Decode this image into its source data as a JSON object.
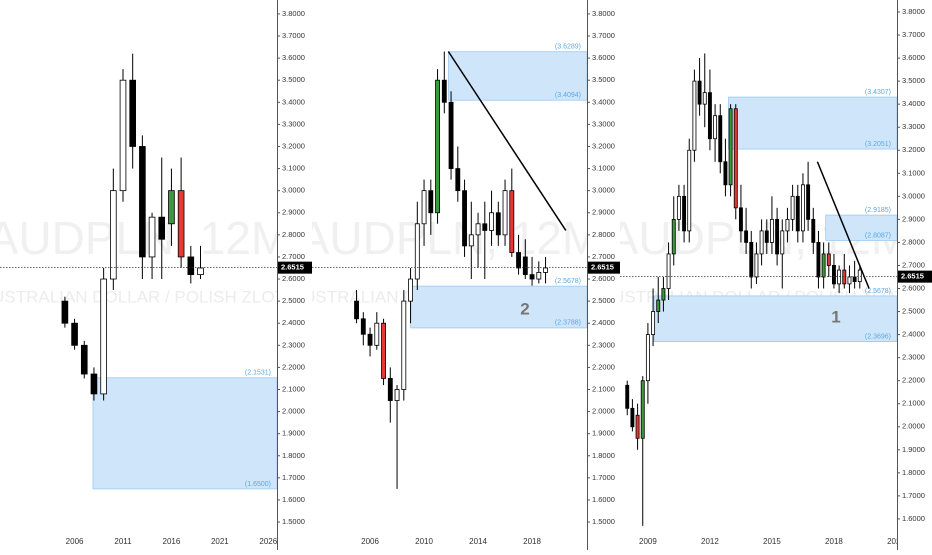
{
  "chart_data": [
    {
      "type": "candlestick",
      "watermark": "AUDPLN, 12M",
      "subtitle": "AUSTRALIAN DOLLAR / POLISH ZLOTY",
      "x": [
        2005,
        2006,
        2007,
        2008,
        2009,
        2010,
        2011,
        2012,
        2013,
        2014,
        2015,
        2016,
        2017,
        2018,
        2019
      ],
      "open": [
        2.5,
        2.4,
        2.3,
        2.17,
        2.08,
        2.6,
        3.0,
        3.5,
        3.2,
        2.7,
        2.88,
        2.85,
        3.0,
        2.7,
        2.62
      ],
      "high": [
        2.52,
        2.42,
        2.32,
        2.2,
        2.65,
        3.1,
        3.55,
        3.62,
        3.25,
        2.9,
        3.15,
        3.1,
        3.15,
        2.75,
        2.75
      ],
      "low": [
        2.38,
        2.28,
        2.15,
        2.05,
        2.05,
        2.55,
        2.95,
        3.1,
        2.6,
        2.6,
        2.6,
        2.75,
        2.65,
        2.58,
        2.6
      ],
      "close": [
        2.4,
        2.3,
        2.17,
        2.08,
        2.6,
        3.0,
        3.5,
        3.2,
        2.7,
        2.88,
        2.78,
        3.0,
        2.7,
        2.62,
        2.65
      ],
      "colors": [
        "#000000",
        "#000000",
        "#000000",
        "#000000",
        "#ffffff",
        "#ffffff",
        "#ffffff",
        "#000000",
        "#000000",
        "#ffffff",
        "#000000",
        "#3a9b3a",
        "#e53935",
        "#000000",
        "#ffffff"
      ],
      "xlim": [
        1998.3,
        2026.9
      ],
      "xticks": [
        2006,
        2011,
        2016,
        2021,
        2026
      ],
      "ylim": [
        1.464,
        3.863
      ],
      "yticks": [
        {
          "value": 3.8,
          "label": "3.8000"
        },
        {
          "value": 3.7,
          "label": "3.7000"
        },
        {
          "value": 3.6,
          "label": "3.6000"
        },
        {
          "value": 3.5,
          "label": "3.5000"
        },
        {
          "value": 3.4,
          "label": "3.4000"
        },
        {
          "value": 3.3,
          "label": "3.3000"
        },
        {
          "value": 3.2,
          "label": "3.2000"
        },
        {
          "value": 3.1,
          "label": "3.1000"
        },
        {
          "value": 3.0,
          "label": "3.0000"
        },
        {
          "value": 2.9,
          "label": "2.9000"
        },
        {
          "value": 2.8,
          "label": "2.8000"
        },
        {
          "value": 2.7,
          "label": "2.7000"
        },
        {
          "value": 2.6,
          "label": "2.6000"
        },
        {
          "value": 2.5,
          "label": "2.5000"
        },
        {
          "value": 2.4,
          "label": "2.4000"
        },
        {
          "value": 2.3,
          "label": "2.3000"
        },
        {
          "value": 2.2,
          "label": "2.2000"
        },
        {
          "value": 2.1,
          "label": "2.1000"
        },
        {
          "value": 2.0,
          "label": "2.0000"
        },
        {
          "value": 1.9,
          "label": "1.9000"
        },
        {
          "value": 1.8,
          "label": "1.8000"
        },
        {
          "value": 1.7,
          "label": "1.7000"
        },
        {
          "value": 1.6,
          "label": "1.6000"
        },
        {
          "value": 1.5,
          "label": "1.5000"
        }
      ],
      "last_price": 2.6515,
      "zones": [
        {
          "start": 2007.9,
          "top": {
            "value": 2.1531,
            "label": "(2.1531)"
          },
          "bottom": {
            "value": 1.65,
            "label": "(1.6500)"
          }
        }
      ],
      "trendlines": []
    },
    {
      "type": "candlestick",
      "watermark": "AUDPLN, 12M",
      "subtitle": "AUSTRALIAN DOLLAR / POLISH ZLOTY",
      "x": [
        2005,
        2005.5,
        2006,
        2006.5,
        2007,
        2007.5,
        2008,
        2008.5,
        2009,
        2009.5,
        2010,
        2010.5,
        2011,
        2011.5,
        2012,
        2012.5,
        2013,
        2013.5,
        2014,
        2014.5,
        2015,
        2015.5,
        2016,
        2016.5,
        2017,
        2017.5,
        2018,
        2018.5,
        2019
      ],
      "open": [
        2.5,
        2.42,
        2.35,
        2.3,
        2.4,
        2.15,
        2.05,
        2.1,
        2.5,
        2.6,
        2.85,
        3.0,
        2.9,
        3.5,
        3.4,
        3.1,
        3.0,
        2.75,
        2.8,
        2.85,
        2.82,
        2.9,
        2.8,
        3.0,
        2.72,
        2.7,
        2.62,
        2.6,
        2.63
      ],
      "high": [
        2.55,
        2.45,
        2.38,
        2.45,
        2.42,
        2.2,
        2.12,
        2.55,
        2.65,
        2.95,
        3.05,
        3.05,
        3.55,
        3.63,
        3.45,
        3.2,
        3.05,
        2.95,
        2.9,
        2.95,
        3.0,
        2.95,
        3.05,
        3.1,
        2.8,
        2.78,
        2.7,
        2.68,
        2.7
      ],
      "low": [
        2.4,
        2.3,
        2.25,
        2.28,
        2.12,
        1.95,
        1.65,
        2.05,
        2.4,
        2.55,
        2.75,
        2.8,
        2.85,
        3.35,
        3.05,
        2.95,
        2.7,
        2.6,
        2.65,
        2.6,
        2.75,
        2.75,
        2.75,
        2.7,
        2.62,
        2.6,
        2.57,
        2.58,
        2.58
      ],
      "close": [
        2.42,
        2.35,
        2.3,
        2.4,
        2.15,
        2.05,
        2.1,
        2.5,
        2.6,
        2.85,
        3.0,
        2.9,
        3.5,
        3.4,
        3.1,
        3.0,
        2.75,
        2.8,
        2.85,
        2.82,
        2.9,
        2.8,
        3.0,
        2.72,
        2.65,
        2.62,
        2.6,
        2.63,
        2.65
      ],
      "colors": [
        "#000000",
        "#000000",
        "#000000",
        "#ffffff",
        "#e53935",
        "#000000",
        "#ffffff",
        "#ffffff",
        "#ffffff",
        "#ffffff",
        "#ffffff",
        "#000000",
        "#3a9b3a",
        "#000000",
        "#000000",
        "#000000",
        "#000000",
        "#ffffff",
        "#ffffff",
        "#000000",
        "#ffffff",
        "#000000",
        "#ffffff",
        "#e53935",
        "#000000",
        "#000000",
        "#000000",
        "#ffffff",
        "#ffffff"
      ],
      "xlim": [
        2001.7,
        2022.07
      ],
      "xticks": [
        2006,
        2010,
        2014,
        2018
      ],
      "ylim": [
        1.464,
        3.863
      ],
      "yticks": [
        {
          "value": 3.8,
          "label": "3.8000"
        },
        {
          "value": 3.7,
          "label": "3.7000"
        },
        {
          "value": 3.6,
          "label": "3.6000"
        },
        {
          "value": 3.5,
          "label": "3.5000"
        },
        {
          "value": 3.4,
          "label": "3.4000"
        },
        {
          "value": 3.3,
          "label": "3.3000"
        },
        {
          "value": 3.2,
          "label": "3.2000"
        },
        {
          "value": 3.1,
          "label": "3.1000"
        },
        {
          "value": 3.0,
          "label": "3.0000"
        },
        {
          "value": 2.9,
          "label": "2.9000"
        },
        {
          "value": 2.8,
          "label": "2.8000"
        },
        {
          "value": 2.7,
          "label": "2.7000"
        },
        {
          "value": 2.6,
          "label": "2.6000"
        },
        {
          "value": 2.5,
          "label": "2.5000"
        },
        {
          "value": 2.4,
          "label": "2.4000"
        },
        {
          "value": 2.3,
          "label": "2.3000"
        },
        {
          "value": 2.2,
          "label": "2.2000"
        },
        {
          "value": 2.1,
          "label": "2.1000"
        },
        {
          "value": 2.0,
          "label": "2.0000"
        },
        {
          "value": 1.9,
          "label": "1.9000"
        },
        {
          "value": 1.8,
          "label": "1.8000"
        },
        {
          "value": 1.7,
          "label": "1.7000"
        },
        {
          "value": 1.6,
          "label": "1.6000"
        },
        {
          "value": 1.5,
          "label": "1.5000"
        }
      ],
      "last_price": 2.6515,
      "zones": [
        {
          "start": 2011.8,
          "top": {
            "value": 3.6289,
            "label": "(3.6289)"
          },
          "bottom": {
            "value": 3.4094,
            "label": "(3.4094)"
          }
        },
        {
          "start": 2009.0,
          "top": {
            "value": 2.5678,
            "label": "(2.5678)"
          },
          "bottom": {
            "value": 2.3788,
            "label": "(2.3788)"
          }
        }
      ],
      "trendlines": [
        {
          "x": [
            2011.8,
            2020.5
          ],
          "y": [
            3.63,
            2.82
          ]
        }
      ],
      "annotation": "2"
    },
    {
      "type": "candlestick",
      "watermark": "AUDPLN, 12M",
      "subtitle": "AUSTRALIAN DOLLAR / POLISH ZLOTY",
      "x": [
        2008,
        2008.25,
        2008.5,
        2008.75,
        2009,
        2009.25,
        2009.5,
        2009.75,
        2010,
        2010.25,
        2010.5,
        2010.75,
        2011,
        2011.25,
        2011.5,
        2011.75,
        2012,
        2012.25,
        2012.5,
        2012.75,
        2013,
        2013.25,
        2013.5,
        2013.75,
        2014,
        2014.25,
        2014.5,
        2014.75,
        2015,
        2015.25,
        2015.5,
        2015.75,
        2016,
        2016.25,
        2016.5,
        2016.75,
        2017,
        2017.25,
        2017.5,
        2017.75,
        2018,
        2018.25,
        2018.5,
        2018.75,
        2019,
        2019.25
      ],
      "open": [
        2.18,
        2.08,
        2.05,
        1.95,
        2.2,
        2.4,
        2.5,
        2.55,
        2.6,
        2.75,
        2.9,
        3.0,
        2.85,
        3.2,
        3.5,
        3.4,
        3.45,
        3.25,
        3.35,
        3.15,
        3.05,
        3.38,
        2.95,
        2.85,
        2.8,
        2.65,
        2.75,
        2.85,
        2.8,
        2.9,
        2.75,
        2.85,
        2.9,
        3.0,
        2.85,
        3.05,
        2.9,
        2.8,
        2.65,
        2.75,
        2.7,
        2.62,
        2.68,
        2.62,
        2.65,
        2.63
      ],
      "high": [
        2.2,
        2.12,
        2.1,
        2.22,
        2.45,
        2.6,
        2.65,
        2.65,
        2.8,
        3.0,
        3.05,
        3.05,
        3.25,
        3.55,
        3.6,
        3.62,
        3.55,
        3.4,
        3.4,
        3.25,
        3.4,
        3.4,
        3.05,
        2.95,
        2.85,
        2.8,
        2.9,
        2.9,
        3.0,
        2.95,
        2.9,
        2.95,
        3.05,
        3.05,
        3.1,
        3.15,
        2.95,
        2.85,
        2.8,
        2.8,
        2.75,
        2.7,
        2.75,
        2.7,
        2.72,
        2.7
      ],
      "low": [
        2.05,
        1.98,
        1.9,
        1.57,
        2.1,
        2.35,
        2.45,
        2.5,
        2.55,
        2.7,
        2.85,
        2.8,
        2.8,
        3.15,
        3.35,
        3.3,
        3.2,
        3.15,
        3.1,
        3.0,
        3.0,
        2.9,
        2.8,
        2.75,
        2.6,
        2.62,
        2.7,
        2.75,
        2.75,
        2.7,
        2.6,
        2.8,
        2.85,
        2.8,
        2.8,
        2.85,
        2.75,
        2.6,
        2.6,
        2.65,
        2.6,
        2.58,
        2.6,
        2.58,
        2.6,
        2.6
      ],
      "close": [
        2.08,
        2.0,
        1.95,
        2.2,
        2.4,
        2.5,
        2.55,
        2.6,
        2.75,
        2.9,
        3.0,
        2.85,
        3.2,
        3.5,
        3.4,
        3.45,
        3.25,
        3.35,
        3.15,
        3.05,
        3.38,
        2.95,
        2.85,
        2.8,
        2.65,
        2.75,
        2.85,
        2.8,
        2.9,
        2.75,
        2.85,
        2.9,
        3.0,
        2.85,
        3.05,
        2.9,
        2.8,
        2.65,
        2.75,
        2.7,
        2.62,
        2.68,
        2.62,
        2.65,
        2.63,
        2.68
      ],
      "colors": [
        "#000000",
        "#000000",
        "#e53935",
        "#3a9b3a",
        "#ffffff",
        "#ffffff",
        "#3a9b3a",
        "#3a9b3a",
        "#ffffff",
        "#3a9b3a",
        "#ffffff",
        "#000000",
        "#ffffff",
        "#ffffff",
        "#000000",
        "#ffffff",
        "#000000",
        "#ffffff",
        "#000000",
        "#000000",
        "#3a9b3a",
        "#e53935",
        "#000000",
        "#000000",
        "#000000",
        "#ffffff",
        "#ffffff",
        "#000000",
        "#ffffff",
        "#000000",
        "#ffffff",
        "#ffffff",
        "#ffffff",
        "#000000",
        "#ffffff",
        "#000000",
        "#000000",
        "#000000",
        "#3a9b3a",
        "#e53935",
        "#000000",
        "#ffffff",
        "#e53935",
        "#ffffff",
        "#000000",
        "#ffffff"
      ],
      "xlim": [
        2007.65,
        2021.05
      ],
      "xticks": [
        2009,
        2012,
        2015,
        2018,
        2021
      ],
      "ylim": [
        1.552,
        3.852
      ],
      "yticks": [
        {
          "value": 3.8,
          "label": "3.8000"
        },
        {
          "value": 3.7,
          "label": "3.7000"
        },
        {
          "value": 3.6,
          "label": "3.6000"
        },
        {
          "value": 3.5,
          "label": "3.5000"
        },
        {
          "value": 3.4,
          "label": "3.4000"
        },
        {
          "value": 3.3,
          "label": "3.3000"
        },
        {
          "value": 3.2,
          "label": "3.2000"
        },
        {
          "value": 3.1,
          "label": "3.1000"
        },
        {
          "value": 3.0,
          "label": "3.0000"
        },
        {
          "value": 2.9,
          "label": "2.9000"
        },
        {
          "value": 2.8,
          "label": "2.8000"
        },
        {
          "value": 2.7,
          "label": "2.7000"
        },
        {
          "value": 2.6,
          "label": "2.6000"
        },
        {
          "value": 2.5,
          "label": "2.5000"
        },
        {
          "value": 2.4,
          "label": "2.4000"
        },
        {
          "value": 2.3,
          "label": "2.3000"
        },
        {
          "value": 2.2,
          "label": "2.2000"
        },
        {
          "value": 2.1,
          "label": "2.1000"
        },
        {
          "value": 2.0,
          "label": "2.0000"
        },
        {
          "value": 1.9,
          "label": "1.9000"
        },
        {
          "value": 1.8,
          "label": "1.8000"
        },
        {
          "value": 1.7,
          "label": "1.7000"
        },
        {
          "value": 1.6,
          "label": "1.6000"
        }
      ],
      "last_price": 2.6515,
      "zones": [
        {
          "start": 2012.9,
          "top": {
            "value": 3.4307,
            "label": "(3.4307)"
          },
          "bottom": {
            "value": 3.2051,
            "label": "(3.2051)"
          }
        },
        {
          "start": 2017.6,
          "top": {
            "value": 2.9185,
            "label": "(2.9185)"
          },
          "bottom": {
            "value": 2.8087,
            "label": "(2.8087)"
          }
        },
        {
          "start": 2009.3,
          "top": {
            "value": 2.5678,
            "label": "(2.5678)"
          },
          "bottom": {
            "value": 2.3696,
            "label": "(2.3696)"
          }
        }
      ],
      "trendlines": [
        {
          "x": [
            2017.2,
            2019.7
          ],
          "y": [
            3.15,
            2.6
          ]
        }
      ],
      "annotation": "1"
    }
  ]
}
